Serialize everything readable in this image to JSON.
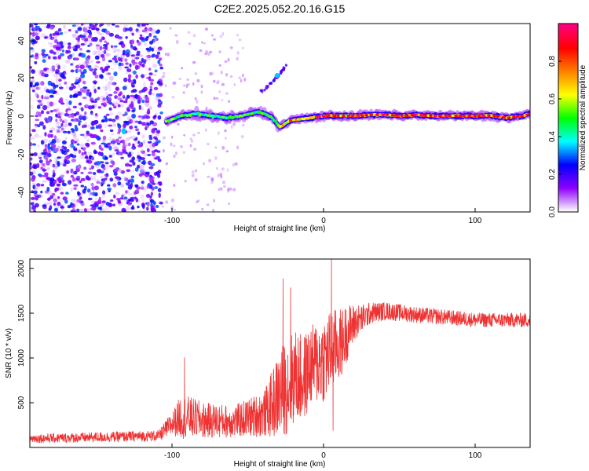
{
  "figure": {
    "title": "C2E2.2025.052.20.16.G15"
  },
  "chart_data": [
    {
      "type": "heatmap",
      "title": "C2E2.2025.052.20.16.G15",
      "xlabel": "Height of straight line (km)",
      "ylabel": "Frequency (Hz)",
      "xlim": [
        -195,
        135
      ],
      "ylim": [
        -50,
        48
      ],
      "xticks": [
        -100,
        0,
        100
      ],
      "xtick_labels": [
        "-100",
        "0",
        "100"
      ],
      "yticks": [
        -40,
        -20,
        0,
        20,
        40
      ],
      "ytick_labels": [
        "-40",
        "-20",
        "0",
        "20",
        "40"
      ],
      "colorbar": {
        "label": "Normalized spectral amplitude",
        "range": [
          0,
          1
        ],
        "ticks": [
          0.0,
          0.2,
          0.4,
          0.6,
          0.8
        ],
        "tick_labels": [
          "0.0",
          "0.2",
          "0.4",
          "0.6",
          "0.8"
        ],
        "colormap": [
          "#ffffff",
          "#8f00ff",
          "#0000ff",
          "#00ffff",
          "#00ff00",
          "#ffff00",
          "#ff8000",
          "#ff0000",
          "#ff0080"
        ]
      },
      "ridge": {
        "x": [
          -105,
          -95,
          -85,
          -75,
          -65,
          -55,
          -50,
          -45,
          -40,
          -35,
          -32,
          -30,
          -25,
          -20,
          -10,
          0,
          10,
          20,
          30,
          40,
          50,
          60,
          70,
          80,
          90,
          100,
          110,
          120,
          130,
          135
        ],
        "frequency": [
          -3,
          0,
          1,
          0,
          -1,
          0,
          1,
          2,
          1,
          -1,
          -4,
          -6,
          -3,
          -2,
          -1,
          0,
          0,
          0,
          0.5,
          0.5,
          0,
          0.5,
          0,
          0,
          0,
          0,
          0,
          -1,
          0,
          1
        ]
      },
      "noise_region": [
        -195,
        -108
      ],
      "fork_trace": {
        "x": [
          -44,
          -40,
          -36,
          -32,
          -29,
          -25
        ],
        "frequency": [
          12,
          14,
          17,
          20,
          23,
          27
        ]
      }
    },
    {
      "type": "line",
      "xlabel": "Height of straight line (km)",
      "ylabel": "SNR (10 * v/v)",
      "xlim": [
        -195,
        135
      ],
      "ylim": [
        0,
        2100
      ],
      "xticks": [
        -100,
        0,
        100
      ],
      "xtick_labels": [
        "-100",
        "0",
        "100"
      ],
      "yticks": [
        500,
        1000,
        1500,
        2000
      ],
      "ytick_labels": [
        "500",
        "1000",
        "1500",
        "2000"
      ],
      "color": "#ee3333",
      "envelope": {
        "x": [
          -195,
          -160,
          -110,
          -100,
          -95,
          -80,
          -60,
          -40,
          -30,
          -25,
          -20,
          -15,
          -10,
          0,
          5,
          10,
          15,
          20,
          25,
          30,
          40,
          60,
          80,
          100,
          120,
          135
        ],
        "mean": [
          100,
          110,
          130,
          280,
          350,
          300,
          290,
          380,
          600,
          700,
          800,
          750,
          900,
          1000,
          1100,
          1150,
          1300,
          1400,
          1450,
          1500,
          1520,
          1480,
          1450,
          1420,
          1420,
          1420
        ],
        "amplitude": [
          50,
          55,
          60,
          150,
          250,
          200,
          180,
          260,
          500,
          550,
          520,
          500,
          450,
          500,
          450,
          400,
          300,
          200,
          150,
          120,
          100,
          90,
          85,
          80,
          80,
          80
        ]
      },
      "spikes": [
        {
          "x": -93,
          "y": 1000
        },
        {
          "x": -28,
          "y": 1880
        },
        {
          "x": -23,
          "y": 1780
        },
        {
          "x": 4,
          "y": 2100
        },
        {
          "x": 5,
          "y": 190
        }
      ]
    }
  ]
}
